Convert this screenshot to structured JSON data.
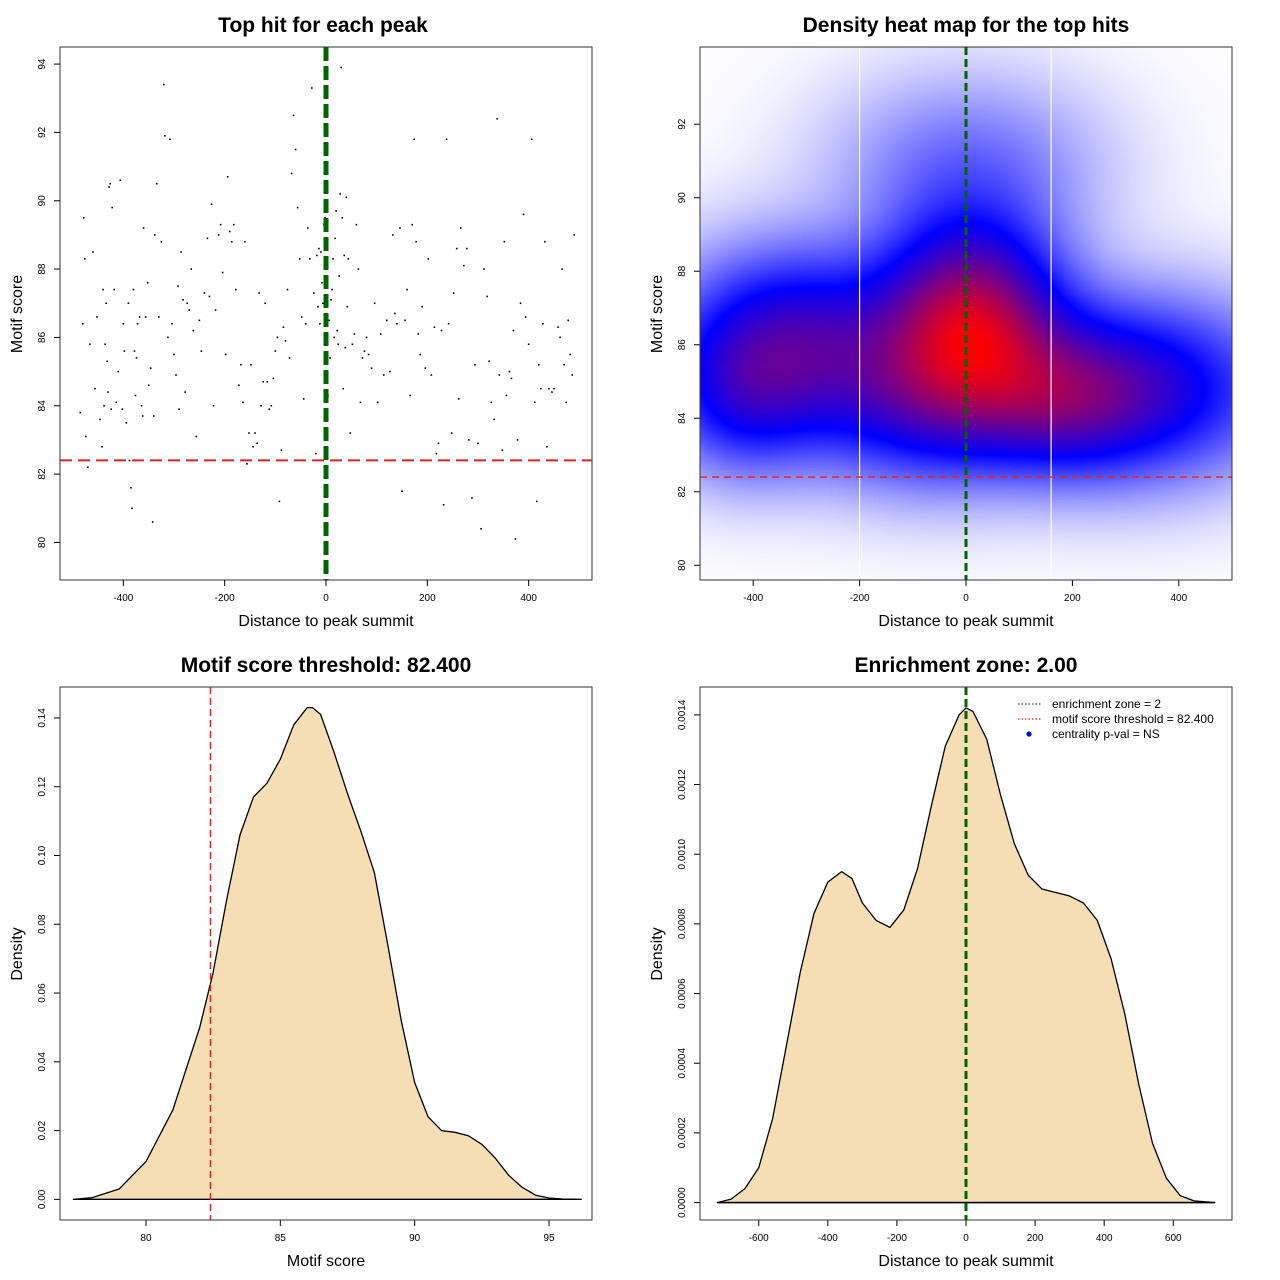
{
  "colors": {
    "threshold": "#dd2222",
    "zone": "#006400",
    "density_fill": "#f5deb3",
    "heat_low": "#ffffff",
    "heat_mid": "#0000ff",
    "heat_high": "#ff0000",
    "pval_marker": "#0000ff"
  },
  "chart_data": [
    {
      "type": "scatter",
      "title": "Top hit for each peak",
      "xlabel": "Distance to peak summit",
      "ylabel": "Motif score",
      "xlim": [
        -525,
        525
      ],
      "ylim": [
        78.9,
        94.5
      ],
      "xticks": [
        -400,
        -200,
        0,
        200,
        400
      ],
      "xtick_labels": [
        "-400",
        "-200",
        "0",
        "200",
        "400"
      ],
      "yticks": [
        80,
        82,
        84,
        86,
        88,
        90,
        92,
        94
      ],
      "ytick_labels": [
        "80",
        "82",
        "84",
        "86",
        "88",
        "90",
        "92",
        "94"
      ],
      "threshold": 82.4,
      "zone_center": 0,
      "points": [
        [
          -485,
          83.8
        ],
        [
          -480,
          86.4
        ],
        [
          -478,
          89.5
        ],
        [
          -476,
          88.3
        ],
        [
          -474,
          83.1
        ],
        [
          -470,
          82.2
        ],
        [
          -466,
          85.8
        ],
        [
          -460,
          88.5
        ],
        [
          -456,
          84.5
        ],
        [
          -452,
          86.6
        ],
        [
          -446,
          83.6
        ],
        [
          -442,
          82.8
        ],
        [
          -440,
          87.4
        ],
        [
          -438,
          84.0
        ],
        [
          -436,
          85.8
        ],
        [
          -434,
          87.0
        ],
        [
          -432,
          85.3
        ],
        [
          -430,
          84.4
        ],
        [
          -428,
          90.4
        ],
        [
          -426,
          90.5
        ],
        [
          -424,
          83.9
        ],
        [
          -422,
          89.8
        ],
        [
          -418,
          87.4
        ],
        [
          -414,
          84.1
        ],
        [
          -410,
          85.0
        ],
        [
          -406,
          90.6
        ],
        [
          -402,
          83.9
        ],
        [
          -400,
          86.4
        ],
        [
          -398,
          85.6
        ],
        [
          -394,
          83.5
        ],
        [
          -390,
          87.0
        ],
        [
          -388,
          82.4
        ],
        [
          -385,
          81.6
        ],
        [
          -383,
          81.0
        ],
        [
          -380,
          87.4
        ],
        [
          -378,
          85.6
        ],
        [
          -376,
          84.3
        ],
        [
          -374,
          85.4
        ],
        [
          -372,
          86.4
        ],
        [
          -368,
          86.6
        ],
        [
          -364,
          84.0
        ],
        [
          -362,
          83.7
        ],
        [
          -360,
          89.2
        ],
        [
          -356,
          86.6
        ],
        [
          -352,
          87.6
        ],
        [
          -350,
          84.6
        ],
        [
          -346,
          85.1
        ],
        [
          -342,
          80.6
        ],
        [
          -340,
          83.7
        ],
        [
          -338,
          89.0
        ],
        [
          -334,
          90.5
        ],
        [
          -330,
          86.6
        ],
        [
          -325,
          88.8
        ],
        [
          -320,
          93.4
        ],
        [
          -318,
          91.9
        ],
        [
          -312,
          86.0
        ],
        [
          -308,
          91.8
        ],
        [
          -304,
          86.4
        ],
        [
          -300,
          85.5
        ],
        [
          -296,
          84.9
        ],
        [
          -292,
          87.5
        ],
        [
          -290,
          83.9
        ],
        [
          -286,
          88.5
        ],
        [
          -282,
          87.1
        ],
        [
          -278,
          84.4
        ],
        [
          -274,
          87.0
        ],
        [
          -270,
          86.8
        ],
        [
          -266,
          88.0
        ],
        [
          -262,
          86.2
        ],
        [
          -256,
          83.1
        ],
        [
          -250,
          86.5
        ],
        [
          -246,
          85.6
        ],
        [
          -240,
          87.3
        ],
        [
          -234,
          88.9
        ],
        [
          -230,
          87.2
        ],
        [
          -226,
          89.9
        ],
        [
          -222,
          84.0
        ],
        [
          -218,
          86.8
        ],
        [
          -212,
          89.0
        ],
        [
          -208,
          89.3
        ],
        [
          -204,
          87.9
        ],
        [
          -198,
          85.5
        ],
        [
          -194,
          90.7
        ],
        [
          -190,
          89.1
        ],
        [
          -186,
          88.8
        ],
        [
          -182,
          89.3
        ],
        [
          -178,
          87.4
        ],
        [
          -172,
          84.6
        ],
        [
          -168,
          85.2
        ],
        [
          -164,
          84.1
        ],
        [
          -160,
          88.8
        ],
        [
          -156,
          82.3
        ],
        [
          -152,
          83.2
        ],
        [
          -148,
          85.2
        ],
        [
          -144,
          82.8
        ],
        [
          -140,
          83.2
        ],
        [
          -136,
          82.9
        ],
        [
          -132,
          87.3
        ],
        [
          -128,
          84.0
        ],
        [
          -124,
          84.7
        ],
        [
          -120,
          87.0
        ],
        [
          -116,
          84.7
        ],
        [
          -112,
          83.9
        ],
        [
          -108,
          84.0
        ],
        [
          -104,
          84.8
        ],
        [
          -100,
          85.6
        ],
        [
          -96,
          86.0
        ],
        [
          -92,
          81.2
        ],
        [
          -88,
          82.7
        ],
        [
          -84,
          86.3
        ],
        [
          -80,
          85.9
        ],
        [
          -76,
          87.4
        ],
        [
          -72,
          85.4
        ],
        [
          -68,
          90.8
        ],
        [
          -64,
          92.5
        ],
        [
          -60,
          91.5
        ],
        [
          -56,
          89.8
        ],
        [
          -52,
          88.3
        ],
        [
          -48,
          86.6
        ],
        [
          -44,
          84.2
        ],
        [
          -40,
          86.4
        ],
        [
          -36,
          89.2
        ],
        [
          -32,
          88.3
        ],
        [
          -28,
          93.3
        ],
        [
          -24,
          87.3
        ],
        [
          -20,
          82.6
        ],
        [
          -18,
          88.4
        ],
        [
          -16,
          86.9
        ],
        [
          -14,
          88.6
        ],
        [
          -12,
          86.4
        ],
        [
          -10,
          88.5
        ],
        [
          -8,
          87.6
        ],
        [
          -6,
          87.0
        ],
        [
          -4,
          89.3
        ],
        [
          -2,
          89.5
        ],
        [
          2,
          88.2
        ],
        [
          4,
          84.3
        ],
        [
          6,
          86.5
        ],
        [
          8,
          85.4
        ],
        [
          10,
          87.1
        ],
        [
          12,
          87.4
        ],
        [
          14,
          88.3
        ],
        [
          16,
          86.0
        ],
        [
          18,
          88.9
        ],
        [
          20,
          89.7
        ],
        [
          22,
          86.2
        ],
        [
          24,
          85.8
        ],
        [
          26,
          87.8
        ],
        [
          28,
          90.2
        ],
        [
          30,
          93.9
        ],
        [
          32,
          89.5
        ],
        [
          34,
          84.5
        ],
        [
          36,
          88.4
        ],
        [
          38,
          85.7
        ],
        [
          40,
          90.1
        ],
        [
          42,
          86.9
        ],
        [
          44,
          88.3
        ],
        [
          48,
          83.2
        ],
        [
          52,
          85.8
        ],
        [
          56,
          86.1
        ],
        [
          60,
          89.3
        ],
        [
          64,
          88.0
        ],
        [
          68,
          84.1
        ],
        [
          72,
          85.4
        ],
        [
          76,
          85.6
        ],
        [
          80,
          86.0
        ],
        [
          84,
          85.5
        ],
        [
          90,
          85.1
        ],
        [
          96,
          87.0
        ],
        [
          102,
          84.1
        ],
        [
          108,
          86.1
        ],
        [
          114,
          84.9
        ],
        [
          120,
          86.5
        ],
        [
          126,
          85.0
        ],
        [
          132,
          89.0
        ],
        [
          136,
          86.7
        ],
        [
          140,
          86.4
        ],
        [
          146,
          89.2
        ],
        [
          150,
          81.5
        ],
        [
          156,
          86.5
        ],
        [
          160,
          87.4
        ],
        [
          166,
          84.3
        ],
        [
          170,
          89.3
        ],
        [
          174,
          91.8
        ],
        [
          178,
          88.8
        ],
        [
          182,
          86.1
        ],
        [
          186,
          85.5
        ],
        [
          190,
          86.9
        ],
        [
          196,
          85.1
        ],
        [
          202,
          88.3
        ],
        [
          208,
          84.9
        ],
        [
          214,
          86.3
        ],
        [
          218,
          82.6
        ],
        [
          222,
          82.9
        ],
        [
          228,
          86.2
        ],
        [
          232,
          81.1
        ],
        [
          238,
          91.8
        ],
        [
          242,
          86.4
        ],
        [
          248,
          83.2
        ],
        [
          252,
          87.3
        ],
        [
          258,
          88.6
        ],
        [
          262,
          84.2
        ],
        [
          266,
          89.2
        ],
        [
          272,
          88.1
        ],
        [
          278,
          88.6
        ],
        [
          282,
          83.0
        ],
        [
          288,
          81.3
        ],
        [
          294,
          85.2
        ],
        [
          300,
          82.9
        ],
        [
          306,
          80.4
        ],
        [
          312,
          88.0
        ],
        [
          318,
          87.2
        ],
        [
          322,
          85.3
        ],
        [
          326,
          84.1
        ],
        [
          332,
          83.6
        ],
        [
          338,
          92.4
        ],
        [
          342,
          84.9
        ],
        [
          348,
          82.7
        ],
        [
          352,
          88.8
        ],
        [
          356,
          84.3
        ],
        [
          362,
          85.0
        ],
        [
          366,
          84.8
        ],
        [
          370,
          86.2
        ],
        [
          374,
          80.1
        ],
        [
          378,
          83.0
        ],
        [
          384,
          87.0
        ],
        [
          390,
          89.6
        ],
        [
          394,
          86.6
        ],
        [
          400,
          85.8
        ],
        [
          406,
          91.8
        ],
        [
          412,
          84.1
        ],
        [
          416,
          81.2
        ],
        [
          420,
          85.2
        ],
        [
          424,
          84.5
        ],
        [
          428,
          86.4
        ],
        [
          432,
          88.8
        ],
        [
          436,
          82.8
        ],
        [
          440,
          84.5
        ],
        [
          446,
          84.4
        ],
        [
          450,
          84.5
        ],
        [
          454,
          82.4
        ],
        [
          458,
          86.3
        ],
        [
          462,
          86.0
        ],
        [
          466,
          88.0
        ],
        [
          470,
          85.2
        ],
        [
          474,
          84.1
        ],
        [
          478,
          86.5
        ],
        [
          482,
          85.5
        ],
        [
          486,
          84.9
        ],
        [
          490,
          89.0
        ]
      ]
    },
    {
      "type": "heatmap",
      "title": "Density heat map for the top hits",
      "xlabel": "Distance to peak summit",
      "ylabel": "Motif score",
      "xlim": [
        -500,
        500
      ],
      "ylim": [
        79.6,
        94.1
      ],
      "xticks": [
        -400,
        -200,
        0,
        200,
        400
      ],
      "xtick_labels": [
        "-400",
        "-200",
        "0",
        "200",
        "400"
      ],
      "yticks": [
        80,
        82,
        84,
        86,
        88,
        90,
        92
      ],
      "ytick_labels": [
        "80",
        "82",
        "84",
        "86",
        "88",
        "90",
        "92"
      ],
      "threshold": 82.4,
      "zone_center": 0,
      "white_lines_x": [
        -200,
        160
      ],
      "kernels": [
        {
          "x": 10,
          "y": 86.6,
          "w": 1.0,
          "sx": 110,
          "sy": 1.8
        },
        {
          "x": -320,
          "y": 86.2,
          "w": 0.58,
          "sx": 150,
          "sy": 1.6
        },
        {
          "x": 330,
          "y": 84.8,
          "w": 0.55,
          "sx": 170,
          "sy": 1.6
        },
        {
          "x": -420,
          "y": 84.5,
          "w": 0.35,
          "sx": 100,
          "sy": 1.4
        },
        {
          "x": -100,
          "y": 84.4,
          "w": 0.4,
          "sx": 140,
          "sy": 1.5
        },
        {
          "x": 0,
          "y": 90.8,
          "w": 0.2,
          "sx": 160,
          "sy": 1.6
        },
        {
          "x": 180,
          "y": 84.5,
          "w": 0.4,
          "sx": 110,
          "sy": 1.3
        }
      ]
    },
    {
      "type": "area",
      "title": "Motif score threshold: 82.400",
      "xlabel": "Motif score",
      "ylabel": "Density",
      "xlim": [
        76.8,
        96.6
      ],
      "ylim": [
        -0.006,
        0.149
      ],
      "xticks": [
        80,
        85,
        90,
        95
      ],
      "xtick_labels": [
        "80",
        "85",
        "90",
        "95"
      ],
      "yticks": [
        0.0,
        0.02,
        0.04,
        0.06,
        0.08,
        0.1,
        0.12,
        0.14
      ],
      "ytick_labels": [
        "0.00",
        "0.02",
        "0.04",
        "0.06",
        "0.08",
        "0.10",
        "0.12",
        "0.14"
      ],
      "threshold": 82.4,
      "x": [
        77.3,
        78,
        79,
        80,
        81,
        82,
        82.5,
        83,
        83.5,
        84,
        84.5,
        85,
        85.5,
        86,
        86.2,
        86.5,
        87,
        87.5,
        88,
        88.5,
        89,
        89.5,
        90,
        90.5,
        91,
        91.5,
        92,
        92.5,
        93,
        93.5,
        94,
        94.5,
        95,
        95.5,
        96.2
      ],
      "y": [
        0.0,
        0.0005,
        0.003,
        0.011,
        0.026,
        0.05,
        0.066,
        0.087,
        0.106,
        0.117,
        0.121,
        0.128,
        0.138,
        0.143,
        0.143,
        0.141,
        0.13,
        0.118,
        0.107,
        0.095,
        0.074,
        0.052,
        0.034,
        0.024,
        0.02,
        0.0195,
        0.0185,
        0.016,
        0.012,
        0.007,
        0.0035,
        0.0012,
        0.0004,
        0.0001,
        0.0
      ]
    },
    {
      "type": "area",
      "title": "Enrichment zone: 2.00",
      "xlabel": "Distance to peak summit",
      "ylabel": "Density",
      "xlim": [
        -770,
        770
      ],
      "ylim": [
        -5e-05,
        0.00148
      ],
      "xticks": [
        -600,
        -400,
        -200,
        0,
        200,
        400,
        600
      ],
      "xtick_labels": [
        "-600",
        "-400",
        "-200",
        "0",
        "200",
        "400",
        "600"
      ],
      "yticks": [
        0.0,
        0.0002,
        0.0004,
        0.0006,
        0.0008,
        0.001,
        0.0012,
        0.0014
      ],
      "ytick_labels": [
        "0.0000",
        "0.0002",
        "0.0004",
        "0.0006",
        "0.0008",
        "0.0010",
        "0.0012",
        "0.0014"
      ],
      "zone_center": 0,
      "x": [
        -720,
        -680,
        -640,
        -600,
        -560,
        -520,
        -480,
        -440,
        -400,
        -360,
        -330,
        -300,
        -260,
        -220,
        -180,
        -140,
        -100,
        -60,
        -20,
        0,
        20,
        60,
        100,
        140,
        180,
        220,
        260,
        300,
        340,
        380,
        420,
        460,
        500,
        540,
        580,
        620,
        660,
        720
      ],
      "y": [
        0.0,
        1e-05,
        4e-05,
        0.0001,
        0.00024,
        0.00045,
        0.00066,
        0.00083,
        0.00092,
        0.00095,
        0.00093,
        0.00086,
        0.00081,
        0.00079,
        0.00084,
        0.00096,
        0.00114,
        0.00131,
        0.0014,
        0.00142,
        0.00141,
        0.00133,
        0.00117,
        0.00103,
        0.00094,
        0.0009,
        0.00089,
        0.00088,
        0.00086,
        0.00081,
        0.0007,
        0.00054,
        0.00034,
        0.00017,
        7e-05,
        2e-05,
        5e-06,
        0.0
      ],
      "legend": [
        {
          "label": "enrichment zone = 2",
          "style": "dotted",
          "color": "#006400"
        },
        {
          "label": "motif score threshold = 82.400",
          "style": "dotted",
          "color": "#dd2222"
        },
        {
          "label": "centrality p-val = NS",
          "style": "point",
          "color": "#0000ff"
        }
      ]
    }
  ]
}
